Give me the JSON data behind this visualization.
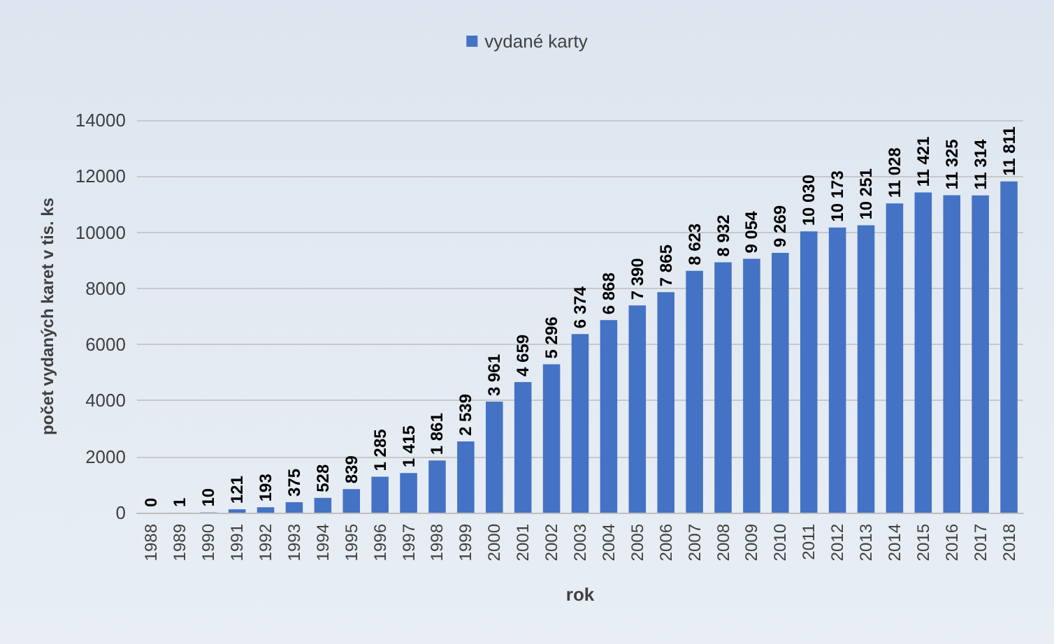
{
  "chart_data": {
    "type": "bar",
    "xlabel": "rok",
    "ylabel": "počet vydaných karet v tis. ks",
    "categories": [
      "1988",
      "1989",
      "1990",
      "1991",
      "1992",
      "1993",
      "1994",
      "1995",
      "1996",
      "1997",
      "1998",
      "1999",
      "2000",
      "2001",
      "2002",
      "2003",
      "2004",
      "2005",
      "2006",
      "2007",
      "2008",
      "2009",
      "2010",
      "2011",
      "2012",
      "2013",
      "2014",
      "2015",
      "2016",
      "2017",
      "2018"
    ],
    "series": [
      {
        "name": "vydané karty",
        "color": "#4472c4",
        "values": [
          0,
          1,
          10,
          121,
          193,
          375,
          528,
          839,
          1285,
          1415,
          1861,
          2539,
          3961,
          4659,
          5296,
          6374,
          6868,
          7390,
          7865,
          8623,
          8932,
          9054,
          9269,
          10030,
          10173,
          10251,
          11028,
          11421,
          11325,
          11314,
          11811
        ],
        "value_labels": [
          "0",
          "1",
          "10",
          "121",
          "193",
          "375",
          "528",
          "839",
          "1 285",
          "1 415",
          "1 861",
          "2 539",
          "3 961",
          "4 659",
          "5 296",
          "6 374",
          "6 868",
          "7 390",
          "7 865",
          "8 623",
          "8 932",
          "9 054",
          "9 269",
          "10 030",
          "10 173",
          "10 251",
          "11 028",
          "11 421",
          "11 325",
          "11 314",
          "11 811"
        ]
      }
    ],
    "ylim": [
      0,
      14000
    ],
    "yticks": [
      0,
      2000,
      4000,
      6000,
      8000,
      10000,
      12000,
      14000
    ],
    "grid": "y",
    "legend": "top"
  }
}
